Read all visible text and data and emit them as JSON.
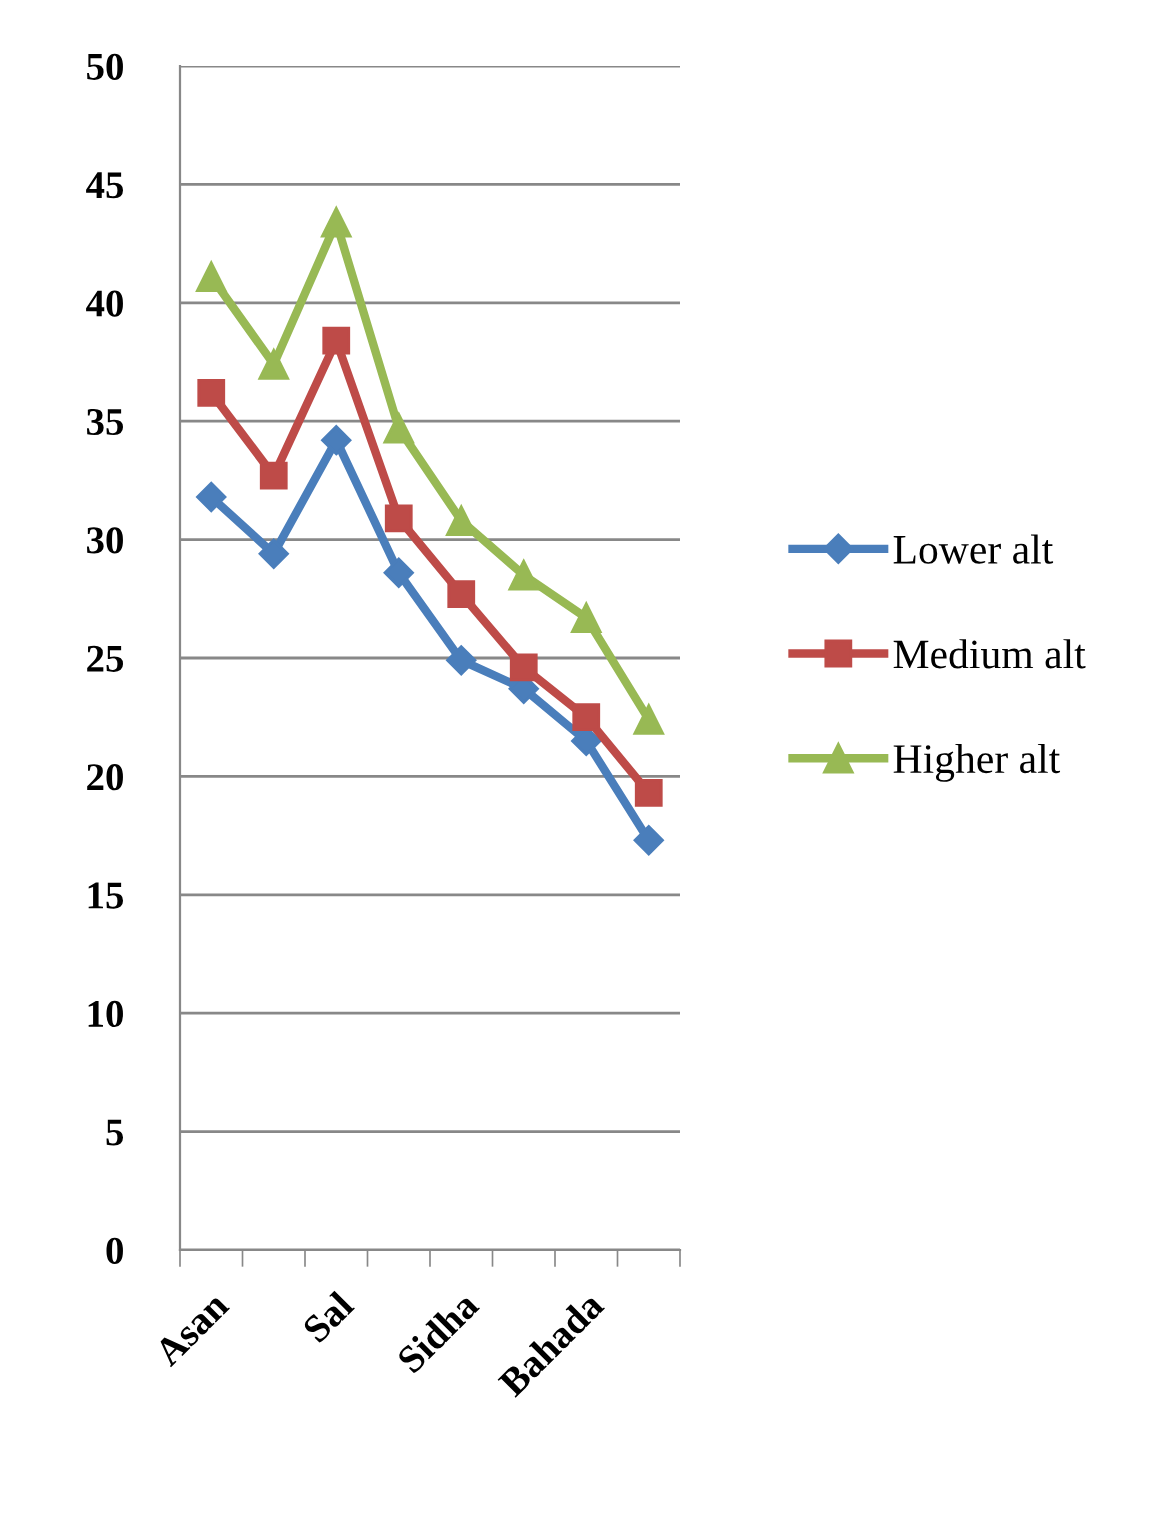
{
  "chart_data": {
    "type": "line",
    "categories": [
      "Asan",
      null,
      "Sal",
      null,
      "Sidha",
      null,
      "Bahada",
      null
    ],
    "series": [
      {
        "name": "Lower alt",
        "color": "#4a7ebb",
        "marker": "diamond",
        "values": [
          31.8,
          29.4,
          34.2,
          28.6,
          24.9,
          23.7,
          21.5,
          17.3
        ]
      },
      {
        "name": "Medium alt",
        "color": "#be4b48",
        "marker": "square",
        "values": [
          36.2,
          32.7,
          38.4,
          30.9,
          27.7,
          24.6,
          22.5,
          19.3
        ]
      },
      {
        "name": "Higher alt",
        "color": "#98b954",
        "marker": "triangle",
        "values": [
          41.1,
          37.4,
          43.4,
          34.7,
          30.8,
          28.5,
          26.7,
          22.4
        ]
      }
    ],
    "ylim": [
      0,
      50
    ],
    "yticks": [
      0,
      5,
      10,
      15,
      20,
      25,
      30,
      35,
      40,
      45,
      50
    ],
    "grid": "y",
    "legend": "right",
    "line_style": "solid"
  }
}
